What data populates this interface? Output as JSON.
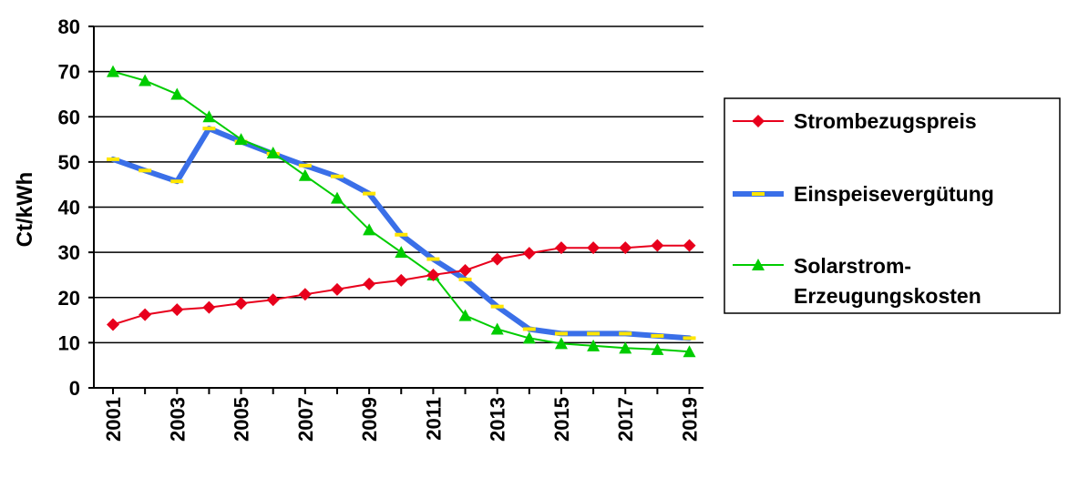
{
  "chart_data": {
    "type": "line",
    "title": "",
    "xlabel": "",
    "ylabel": "Ct/kWh",
    "ylim": [
      0,
      80
    ],
    "yticks": [
      "0",
      "10",
      "20",
      "30",
      "40",
      "50",
      "60",
      "70",
      "80"
    ],
    "xlim": [
      2001,
      2019
    ],
    "xticks": [
      "2001",
      "2003",
      "2005",
      "2007",
      "2009",
      "2011",
      "2013",
      "2015",
      "2017",
      "2019"
    ],
    "grid": "horizontal",
    "legend_position": "right",
    "colors": {
      "grid": "#000000",
      "strombezugspreis": "#e8001c",
      "einspeiseverguetung": "#3a6fe8",
      "einspeiseverguetung_marker": "#ffe600",
      "solarstrom": "#00cc00"
    },
    "series": [
      {
        "name": "Strombezugspreis",
        "marker": "diamond",
        "x": [
          2001,
          2002,
          2003,
          2004,
          2005,
          2006,
          2007,
          2008,
          2009,
          2010,
          2011,
          2012,
          2013,
          2014,
          2015,
          2016,
          2017,
          2018,
          2019
        ],
        "y": [
          14.0,
          16.2,
          17.3,
          17.8,
          18.7,
          19.5,
          20.7,
          21.8,
          23.0,
          23.8,
          25.0,
          26.0,
          28.5,
          29.8,
          31.0,
          31.0,
          31.0,
          31.5,
          31.5
        ]
      },
      {
        "name": "Einspeisevergütung",
        "marker": "dash",
        "x": [
          2001,
          2002,
          2003,
          2004,
          2005,
          2006,
          2007,
          2008,
          2009,
          2010,
          2011,
          2012,
          2013,
          2014,
          2015,
          2016,
          2017,
          2018,
          2019
        ],
        "y": [
          50.6,
          48.1,
          45.7,
          57.4,
          54.5,
          51.8,
          49.2,
          46.8,
          43.0,
          33.9,
          28.5,
          24.0,
          18.0,
          13.0,
          12.0,
          12.0,
          12.0,
          11.5,
          11.0
        ]
      },
      {
        "name": "Solarstrom-Erzeugungskosten",
        "name_lines": [
          "Solarstrom-",
          "Erzeugungskosten"
        ],
        "marker": "triangle",
        "x": [
          2001,
          2002,
          2003,
          2004,
          2005,
          2006,
          2007,
          2008,
          2009,
          2010,
          2011,
          2012,
          2013,
          2014,
          2015,
          2016,
          2017,
          2018,
          2019
        ],
        "y": [
          70.0,
          68.0,
          65.0,
          60.0,
          55.0,
          52.0,
          47.0,
          42.0,
          35.0,
          30.0,
          25.0,
          16.0,
          13.0,
          11.0,
          9.8,
          9.3,
          8.8,
          8.5,
          8.0
        ]
      }
    ]
  }
}
